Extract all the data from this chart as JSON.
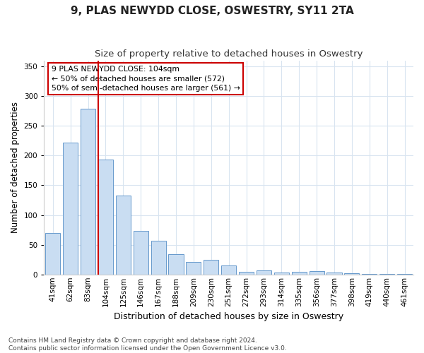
{
  "title": "9, PLAS NEWYDD CLOSE, OSWESTRY, SY11 2TA",
  "subtitle": "Size of property relative to detached houses in Oswestry",
  "xlabel": "Distribution of detached houses by size in Oswestry",
  "ylabel": "Number of detached properties",
  "categories": [
    "41sqm",
    "62sqm",
    "83sqm",
    "104sqm",
    "125sqm",
    "146sqm",
    "167sqm",
    "188sqm",
    "209sqm",
    "230sqm",
    "251sqm",
    "272sqm",
    "293sqm",
    "314sqm",
    "335sqm",
    "356sqm",
    "377sqm",
    "398sqm",
    "419sqm",
    "440sqm",
    "461sqm"
  ],
  "values": [
    70,
    222,
    279,
    193,
    133,
    73,
    57,
    34,
    21,
    25,
    15,
    5,
    7,
    3,
    4,
    6,
    3,
    2,
    1,
    1,
    1
  ],
  "bar_color": "#c9ddf2",
  "bar_edge_color": "#6699cc",
  "highlight_index": 3,
  "highlight_line_color": "#cc0000",
  "annotation_text": "9 PLAS NEWYDD CLOSE: 104sqm\n← 50% of detached houses are smaller (572)\n50% of semi-detached houses are larger (561) →",
  "annotation_box_color": "#ffffff",
  "annotation_box_edge_color": "#cc0000",
  "ylim": [
    0,
    360
  ],
  "yticks": [
    0,
    50,
    100,
    150,
    200,
    250,
    300,
    350
  ],
  "footnote": "Contains HM Land Registry data © Crown copyright and database right 2024.\nContains public sector information licensed under the Open Government Licence v3.0.",
  "background_color": "#ffffff",
  "plot_bg_color": "#ffffff",
  "title_fontsize": 11,
  "subtitle_fontsize": 9.5,
  "xlabel_fontsize": 9,
  "ylabel_fontsize": 8.5,
  "tick_fontsize": 7.5,
  "footnote_fontsize": 6.5,
  "grid_color": "#d8e4f0"
}
